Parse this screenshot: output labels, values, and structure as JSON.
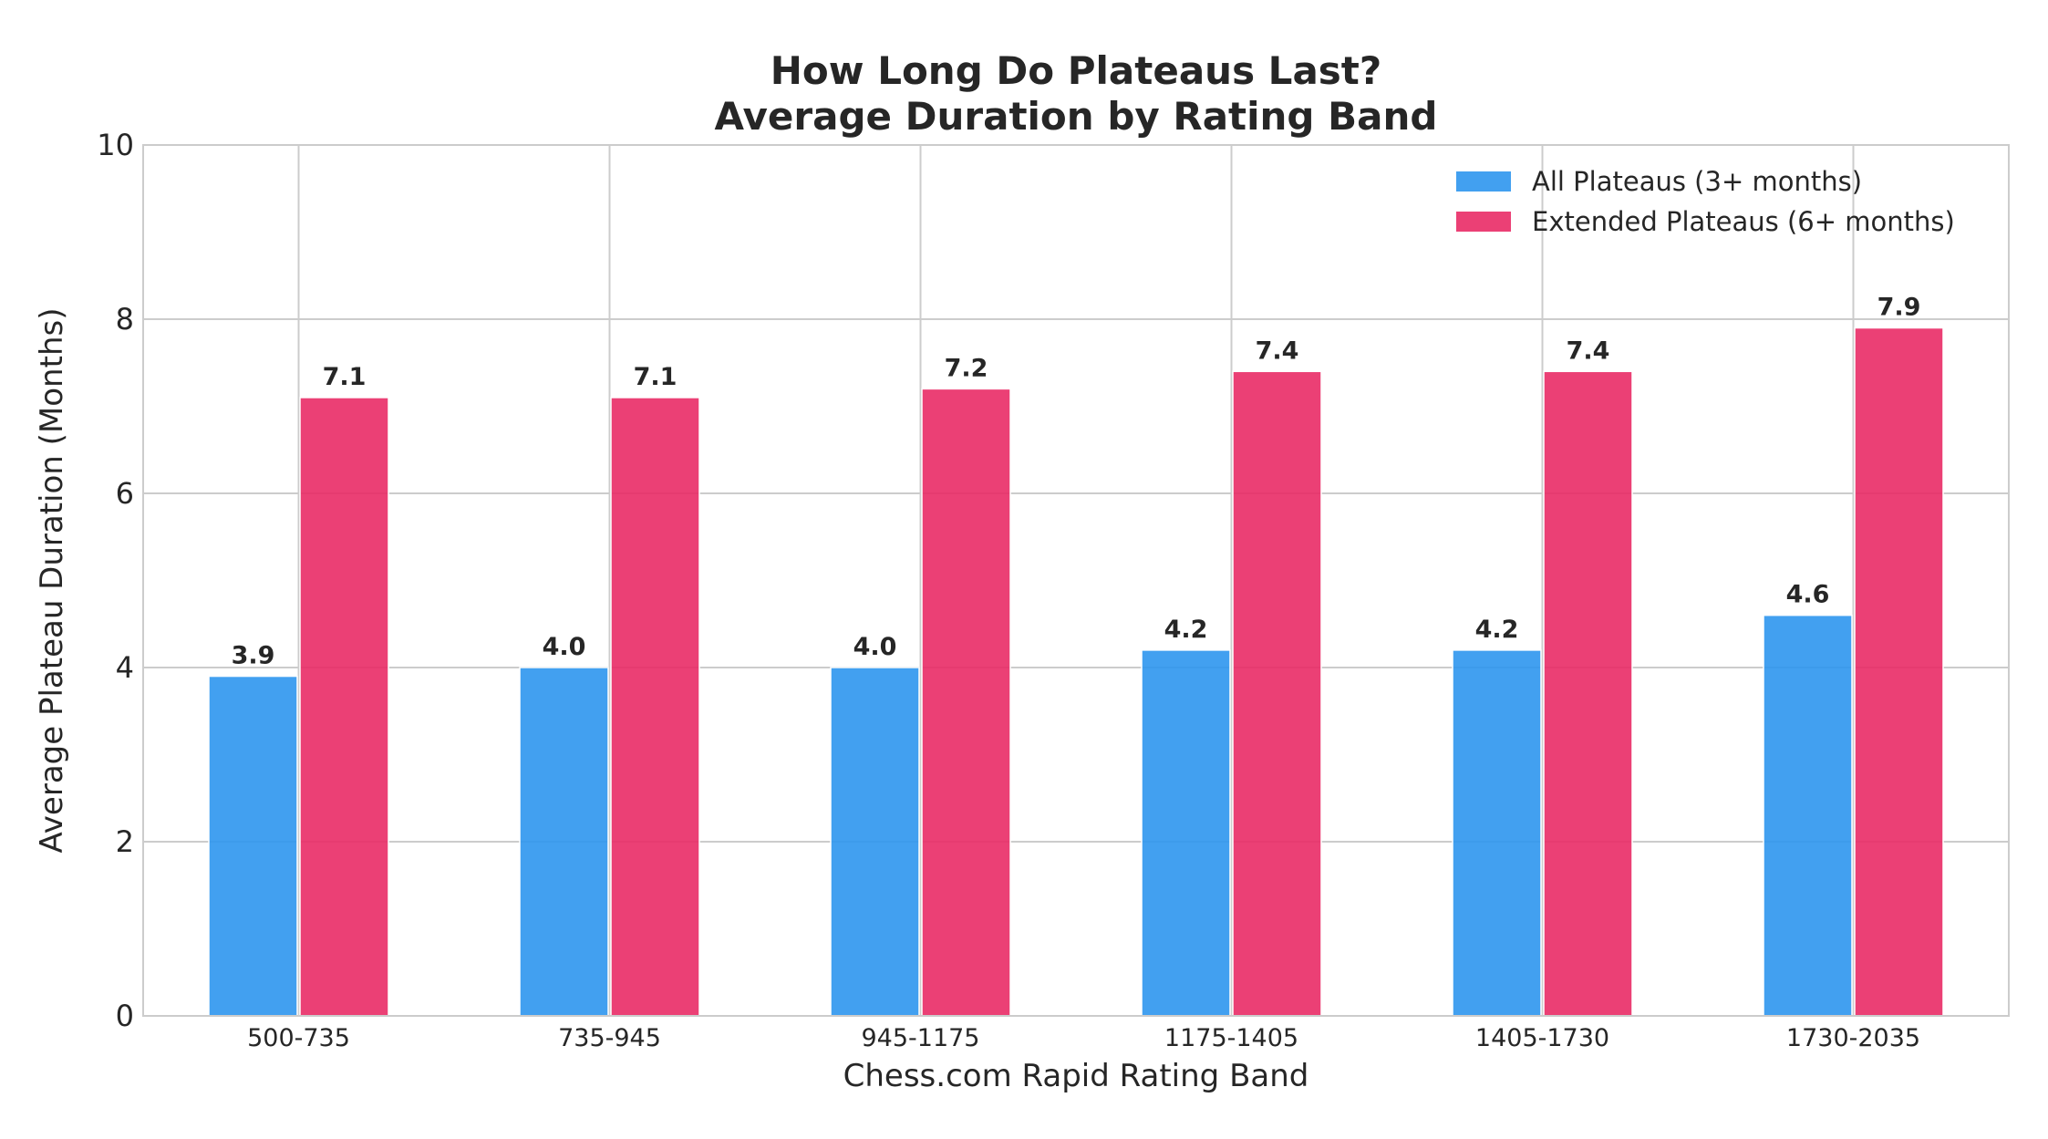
{
  "chart_data": {
    "type": "bar",
    "title_lines": [
      "How Long Do Plateaus Last?",
      "Average Duration by Rating Band"
    ],
    "xlabel": "Chess.com Rapid Rating Band",
    "ylabel": "Average Plateau Duration (Months)",
    "categories": [
      "500-735",
      "735-945",
      "945-1175",
      "1175-1405",
      "1405-1730",
      "1730-2035"
    ],
    "ylim": [
      0,
      10
    ],
    "yticks": [
      "0",
      "2",
      "4",
      "6",
      "8",
      "10"
    ],
    "grid": true,
    "legend_position": "top-right",
    "series": [
      {
        "name": "All Plateaus (3+ months)",
        "color": "#2e96ee",
        "values": [
          3.9,
          4.0,
          4.0,
          4.2,
          4.2,
          4.6
        ],
        "labels": [
          "3.9",
          "4.0",
          "4.0",
          "4.2",
          "4.2",
          "4.6"
        ]
      },
      {
        "name": "Extended Plateaus (6+ months)",
        "color": "#e92b66",
        "values": [
          7.1,
          7.1,
          7.2,
          7.4,
          7.4,
          7.9
        ],
        "labels": [
          "7.1",
          "7.1",
          "7.2",
          "7.4",
          "7.4",
          "7.9"
        ]
      }
    ]
  }
}
